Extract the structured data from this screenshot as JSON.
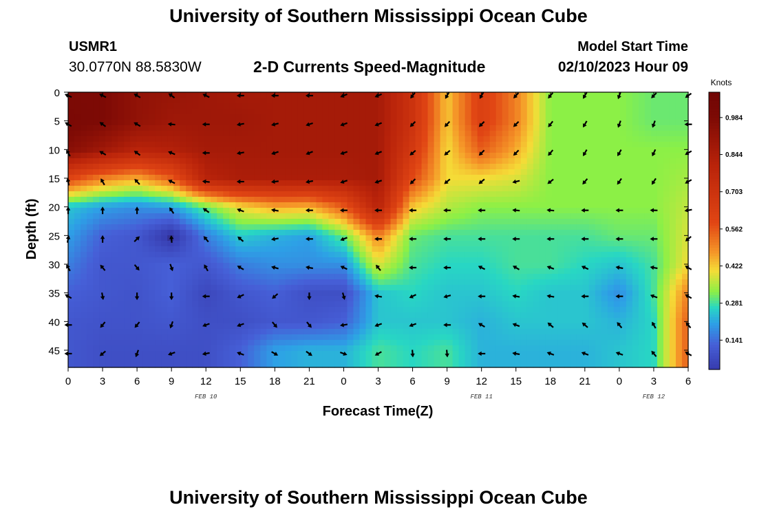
{
  "page": {
    "title": "University of Southern Mississippi Ocean Cube",
    "bottom_title": "University of Southern Mississippi Ocean Cube",
    "station_id": "USMR1",
    "station_coords": "30.0770N  88.5830W",
    "model_start_label": "Model Start Time",
    "model_start_value": "02/10/2023 Hour 09"
  },
  "chart_data": {
    "type": "heatmap",
    "title": "2-D Currents Speed-Magnitude",
    "xlabel": "Forecast Time(Z)",
    "ylabel": "Depth (ft)",
    "x_tick_labels": [
      "0",
      "3",
      "6",
      "9",
      "12",
      "15",
      "18",
      "21",
      "0",
      "3",
      "6",
      "9",
      "12",
      "15",
      "18",
      "21",
      "0",
      "3",
      "6"
    ],
    "x_range_hours": [
      0,
      54
    ],
    "date_labels": [
      {
        "label": "FEB 10",
        "at_hour": 12
      },
      {
        "label": "FEB 11",
        "at_hour": 36
      },
      {
        "label": "FEB 12",
        "at_hour": 51
      }
    ],
    "y_ticks": [
      0,
      5,
      10,
      15,
      20,
      25,
      30,
      35,
      40,
      45
    ],
    "ylim": [
      0,
      48
    ],
    "colorbar": {
      "unit_label": "Knots",
      "tick_labels": [
        "0.984",
        "0.844",
        "0.703",
        "0.562",
        "0.422",
        "0.281",
        "0.141"
      ],
      "tick_values": [
        0.984,
        0.844,
        0.703,
        0.562,
        0.422,
        0.281,
        0.141
      ],
      "range": [
        0.03,
        1.08
      ]
    },
    "grid": false,
    "x_hours": [
      0,
      3,
      6,
      9,
      12,
      15,
      18,
      21,
      24,
      27,
      30,
      33,
      36,
      39,
      42,
      45,
      48,
      51,
      54
    ],
    "depths": [
      0,
      5,
      10,
      15,
      20,
      25,
      30,
      35,
      40,
      45
    ],
    "speed": [
      [
        0.98,
        0.98,
        0.92,
        0.9,
        0.88,
        0.86,
        0.86,
        0.86,
        0.86,
        0.86,
        0.7,
        0.42,
        0.62,
        0.5,
        0.32,
        0.32,
        0.32,
        0.3,
        0.3
      ],
      [
        1.0,
        0.98,
        0.92,
        0.88,
        0.88,
        0.88,
        0.86,
        0.86,
        0.86,
        0.86,
        0.7,
        0.42,
        0.62,
        0.5,
        0.32,
        0.32,
        0.32,
        0.3,
        0.3
      ],
      [
        0.95,
        0.88,
        0.8,
        0.82,
        0.86,
        0.86,
        0.86,
        0.86,
        0.86,
        0.86,
        0.66,
        0.4,
        0.55,
        0.45,
        0.32,
        0.32,
        0.32,
        0.32,
        0.32
      ],
      [
        0.6,
        0.5,
        0.45,
        0.55,
        0.8,
        0.84,
        0.84,
        0.84,
        0.84,
        0.86,
        0.58,
        0.4,
        0.4,
        0.38,
        0.32,
        0.32,
        0.32,
        0.32,
        0.34
      ],
      [
        0.24,
        0.2,
        0.18,
        0.2,
        0.3,
        0.4,
        0.45,
        0.44,
        0.55,
        0.8,
        0.42,
        0.35,
        0.32,
        0.32,
        0.32,
        0.32,
        0.32,
        0.32,
        0.36
      ],
      [
        0.2,
        0.12,
        0.1,
        0.01,
        0.16,
        0.25,
        0.22,
        0.2,
        0.3,
        0.5,
        0.3,
        0.28,
        0.28,
        0.28,
        0.28,
        0.28,
        0.3,
        0.3,
        0.38
      ],
      [
        0.16,
        0.1,
        0.1,
        0.12,
        0.1,
        0.16,
        0.18,
        0.18,
        0.18,
        0.38,
        0.28,
        0.26,
        0.26,
        0.28,
        0.28,
        0.26,
        0.24,
        0.28,
        0.4
      ],
      [
        0.12,
        0.1,
        0.09,
        0.12,
        0.06,
        0.1,
        0.12,
        0.08,
        0.08,
        0.24,
        0.26,
        0.24,
        0.24,
        0.26,
        0.24,
        0.24,
        0.18,
        0.28,
        0.5
      ],
      [
        0.1,
        0.09,
        0.09,
        0.1,
        0.08,
        0.08,
        0.1,
        0.1,
        0.12,
        0.24,
        0.24,
        0.24,
        0.22,
        0.24,
        0.24,
        0.24,
        0.22,
        0.26,
        0.55
      ],
      [
        0.1,
        0.08,
        0.08,
        0.08,
        0.08,
        0.12,
        0.2,
        0.22,
        0.22,
        0.28,
        0.26,
        0.28,
        0.22,
        0.22,
        0.22,
        0.22,
        0.24,
        0.26,
        0.55
      ]
    ],
    "direction_deg": [
      [
        292,
        296,
        300,
        306,
        296,
        270,
        270,
        270,
        248,
        248,
        218,
        210,
        210,
        222,
        220,
        210,
        200,
        225,
        235
      ],
      [
        300,
        306,
        300,
        276,
        270,
        260,
        256,
        252,
        250,
        248,
        225,
        222,
        225,
        225,
        218,
        210,
        200,
        200,
        270
      ],
      [
        330,
        300,
        306,
        292,
        270,
        260,
        252,
        248,
        252,
        248,
        230,
        230,
        225,
        225,
        220,
        210,
        210,
        205,
        240
      ],
      [
        350,
        330,
        316,
        296,
        276,
        270,
        264,
        260,
        252,
        252,
        225,
        230,
        230,
        256,
        232,
        220,
        215,
        214,
        240
      ],
      [
        0,
        0,
        0,
        325,
        305,
        290,
        280,
        270,
        270,
        270,
        270,
        270,
        270,
        276,
        276,
        270,
        270,
        272,
        260
      ],
      [
        10,
        0,
        45,
        355,
        320,
        310,
        260,
        270,
        248,
        270,
        270,
        270,
        270,
        270,
        270,
        270,
        270,
        270,
        230
      ],
      [
        330,
        320,
        140,
        160,
        330,
        300,
        285,
        280,
        295,
        320,
        270,
        270,
        296,
        300,
        290,
        295,
        280,
        280,
        300
      ],
      [
        300,
        170,
        180,
        180,
        270,
        245,
        230,
        180,
        165,
        280,
        245,
        255,
        270,
        280,
        280,
        270,
        270,
        290,
        300
      ],
      [
        270,
        220,
        220,
        200,
        250,
        250,
        140,
        140,
        260,
        250,
        250,
        270,
        300,
        290,
        310,
        310,
        320,
        330,
        320
      ],
      [
        270,
        230,
        200,
        250,
        260,
        290,
        120,
        125,
        110,
        240,
        175,
        175,
        270,
        280,
        290,
        290,
        290,
        320,
        300
      ]
    ]
  }
}
